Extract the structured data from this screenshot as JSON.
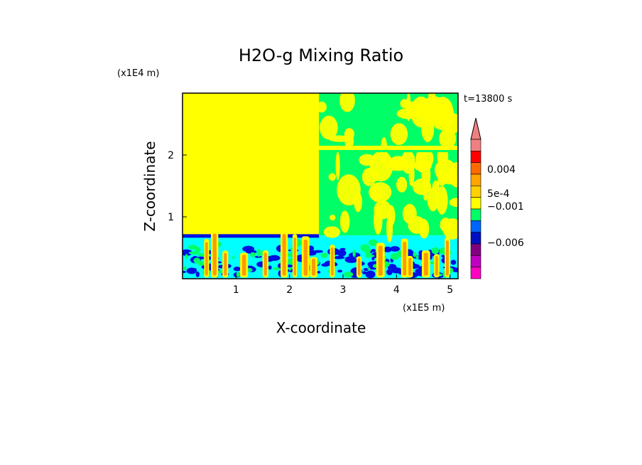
{
  "chart_data": {
    "type": "heatmap",
    "title": "H2O-g Mixing Ratio",
    "xlabel": "X-coordinate",
    "ylabel": "Z-coordinate",
    "x_unit": "(x1E5 m)",
    "y_unit": "(x1E4 m)",
    "time_label": "t=13800 s",
    "xlim": [
      0,
      5.15
    ],
    "ylim": [
      0,
      3.0
    ],
    "x_ticks": [
      "1",
      "2",
      "3",
      "4",
      "5"
    ],
    "x_tick_values": [
      1,
      2,
      3,
      4,
      5
    ],
    "y_ticks": [
      "1",
      "2"
    ],
    "y_tick_values": [
      1,
      2
    ],
    "grid": false,
    "colorbar": {
      "labels": [
        "0.004",
        "5e-4",
        "−0.001",
        "−0.006"
      ],
      "colors_top_to_bottom": [
        "#f08080",
        "#ff0000",
        "#ff6a00",
        "#ffa500",
        "#ffd000",
        "#ffff00",
        "#00ff66",
        "#0064ff",
        "#0010c0",
        "#800080",
        "#c000c0",
        "#ff00c0"
      ]
    },
    "regions": [
      {
        "field": "yellow-upper-left",
        "x": [
          0,
          2.55
        ],
        "z": [
          0.7,
          3.0
        ],
        "color": "#ffff00"
      },
      {
        "field": "green-upper-right",
        "x": [
          2.55,
          5.15
        ],
        "z": [
          0.7,
          3.0
        ],
        "color": "#00ff66"
      },
      {
        "field": "cyan-boundary-layer",
        "x": [
          0,
          5.15
        ],
        "z": [
          0,
          0.7
        ],
        "color": "#00ffff"
      }
    ],
    "colors": {
      "yellow": "#ffff00",
      "green": "#00ff66",
      "cyan": "#00ffff",
      "blue": "#0010e0",
      "orange": "#ff9a00",
      "salmon": "#f08080"
    }
  }
}
